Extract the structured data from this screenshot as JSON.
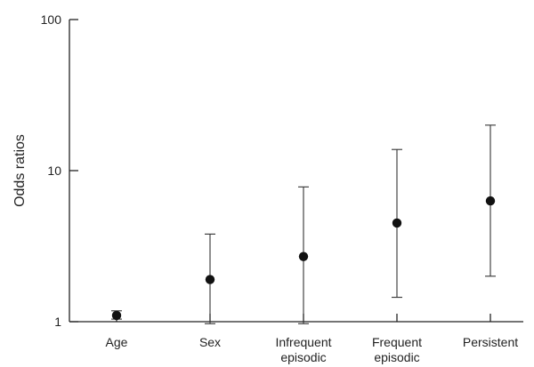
{
  "chart_data": {
    "type": "scatter",
    "title": "",
    "xlabel": "",
    "ylabel": "Odds ratios",
    "yscale": "log",
    "ylim": [
      1,
      100
    ],
    "yticks": [
      1,
      10,
      100
    ],
    "ytick_labels": [
      "1",
      "10",
      "100"
    ],
    "grid": false,
    "categories": [
      [
        "Age"
      ],
      [
        "Sex"
      ],
      [
        "Infrequent",
        "episodic"
      ],
      [
        "Frequent",
        "episodic"
      ],
      [
        "Persistent"
      ]
    ],
    "series": [
      {
        "values": [
          1.1,
          1.9,
          2.7,
          4.5,
          6.3
        ],
        "ci_lower": [
          1.04,
          0.97,
          0.97,
          1.45,
          2.0
        ],
        "ci_upper": [
          1.18,
          3.8,
          7.8,
          13.8,
          20.0
        ]
      }
    ]
  }
}
